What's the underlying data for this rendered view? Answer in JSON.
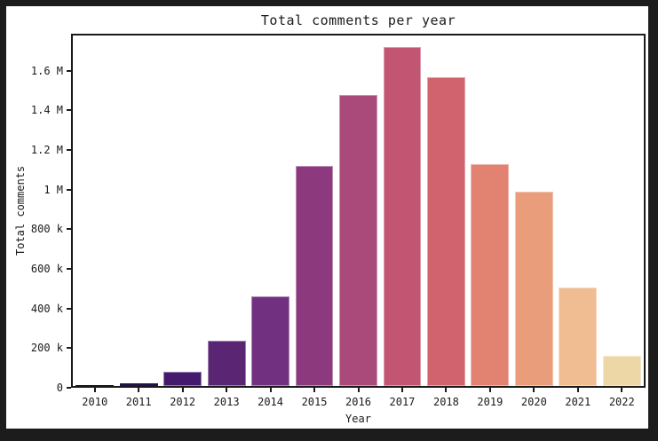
{
  "window": {
    "frame_color": "#1c1c1c",
    "canvas_color": "#ffffff",
    "text_color": "#1a1a1a"
  },
  "chart_data": {
    "type": "bar",
    "title": "Total comments per year",
    "xlabel": "Year",
    "ylabel": "Total comments",
    "categories": [
      "2010",
      "2011",
      "2012",
      "2013",
      "2014",
      "2015",
      "2016",
      "2017",
      "2018",
      "2019",
      "2020",
      "2021",
      "2022"
    ],
    "values": [
      4000,
      15000,
      73000,
      229000,
      458000,
      1120000,
      1481000,
      1726000,
      1575000,
      1130000,
      992000,
      501000,
      154000
    ],
    "bar_colors": [
      "#10092d",
      "#23124e",
      "#45196e",
      "#5a2673",
      "#723081",
      "#8c397d",
      "#a94a7b",
      "#c15572",
      "#d0636e",
      "#e28372",
      "#e99d7a",
      "#f0bd92",
      "#eed7a6"
    ],
    "yticks": [
      {
        "value": 0,
        "label": "0"
      },
      {
        "value": 200000,
        "label": "200 k"
      },
      {
        "value": 400000,
        "label": "400 k"
      },
      {
        "value": 600000,
        "label": "600 k"
      },
      {
        "value": 800000,
        "label": "800 k"
      },
      {
        "value": 1000000,
        "label": "1 M"
      },
      {
        "value": 1200000,
        "label": "1.2 M"
      },
      {
        "value": 1400000,
        "label": "1.4 M"
      },
      {
        "value": 1600000,
        "label": "1.6 M"
      }
    ],
    "ylim": [
      0,
      1786000
    ],
    "grid": false,
    "legend_position": "none"
  }
}
